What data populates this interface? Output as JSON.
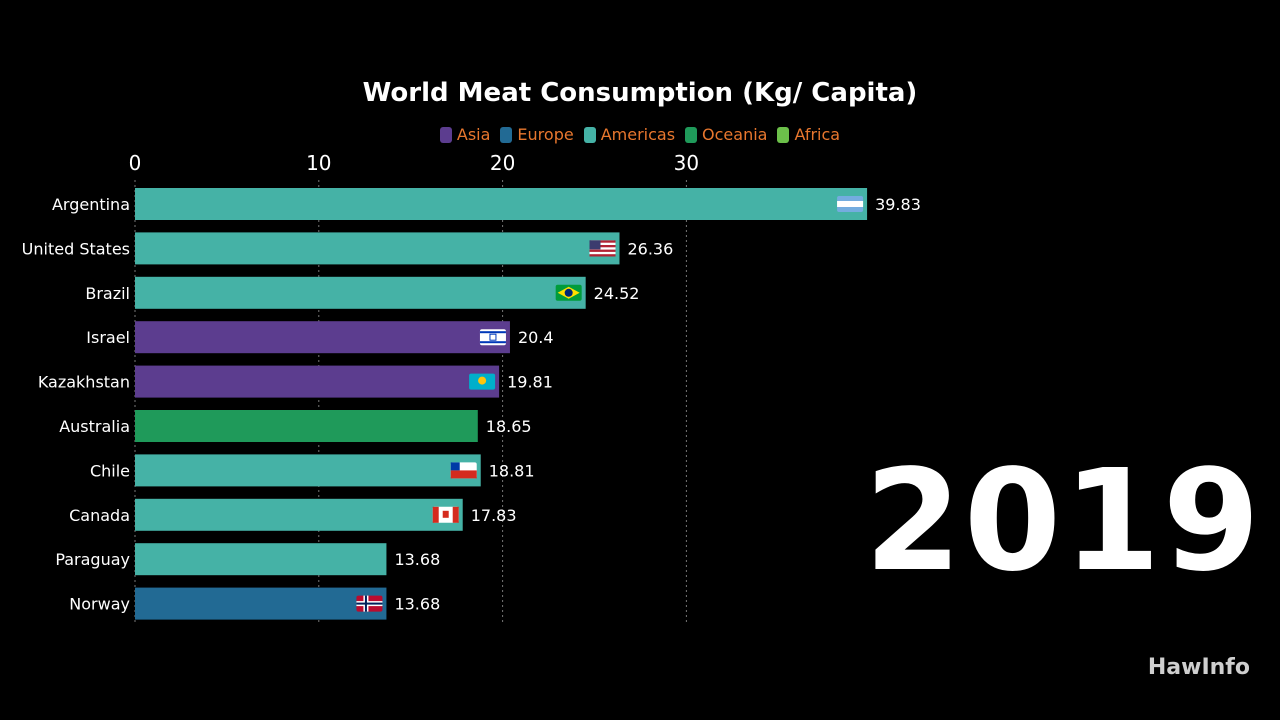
{
  "chart_data": {
    "type": "bar",
    "orientation": "horizontal",
    "title": "World Meat Consumption (Kg/ Capita)",
    "legend": [
      {
        "name": "Asia",
        "color": "#5c3d8f"
      },
      {
        "name": "Europe",
        "color": "#226a94"
      },
      {
        "name": "Americas",
        "color": "#45b2a6"
      },
      {
        "name": "Oceania",
        "color": "#1f9a5a"
      },
      {
        "name": "Africa",
        "color": "#6cc04a"
      }
    ],
    "legend_position": "top",
    "legend_text_color": "#e8772e",
    "xticks": [
      "0",
      "10",
      "20",
      "30"
    ],
    "xlim": [
      0,
      40
    ],
    "grid": "vertical dotted",
    "bars": [
      {
        "category": "Argentina",
        "value": 39.83,
        "label": "39.83",
        "region": "Americas",
        "flag": "argentina-flag"
      },
      {
        "category": "United States",
        "value": 26.36,
        "label": "26.36",
        "region": "Americas",
        "flag": "usa-flag"
      },
      {
        "category": "Brazil",
        "value": 24.52,
        "label": "24.52",
        "region": "Americas",
        "flag": "brazil-flag"
      },
      {
        "category": "Israel",
        "value": 20.4,
        "label": "20.4",
        "region": "Asia",
        "flag": "israel-flag"
      },
      {
        "category": "Kazakhstan",
        "value": 19.81,
        "label": "19.81",
        "region": "Asia",
        "flag": "kazakhstan-flag"
      },
      {
        "category": "Australia",
        "value": 18.65,
        "label": "18.65",
        "region": "Oceania",
        "flag": "australia-flag"
      },
      {
        "category": "Chile",
        "value": 18.81,
        "label": "18.81",
        "region": "Americas",
        "flag": "chile-flag"
      },
      {
        "category": "Canada",
        "value": 17.83,
        "label": "17.83",
        "region": "Americas",
        "flag": "canada-flag"
      },
      {
        "category": "Paraguay",
        "value": 13.68,
        "label": "13.68",
        "region": "Americas",
        "flag": "paraguay-flag"
      },
      {
        "category": "Norway",
        "value": 13.68,
        "label": "13.68",
        "region": "Europe",
        "flag": "norway-flag"
      }
    ]
  },
  "year": "2019",
  "brand": "HawInfo"
}
